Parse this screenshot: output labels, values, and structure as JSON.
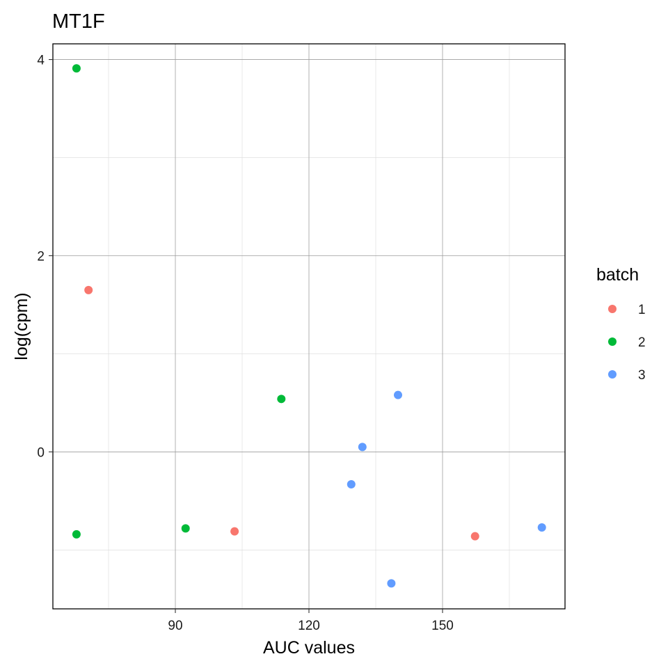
{
  "chart_data": {
    "type": "scatter",
    "title": "MT1F",
    "xlabel": "AUC values",
    "ylabel": "log(cpm)",
    "xlim": [
      62.5,
      177.5
    ],
    "ylim": [
      -1.6,
      4.16
    ],
    "x_major_ticks": [
      90,
      120,
      150
    ],
    "x_minor_ticks": [
      75,
      105,
      135,
      165
    ],
    "y_major_ticks": [
      0,
      2,
      4
    ],
    "y_minor_ticks": [
      -1,
      1,
      3
    ],
    "x_tick_labels": [
      "90",
      "120",
      "150"
    ],
    "y_tick_labels": [
      "0",
      "2",
      "4"
    ],
    "grid": true,
    "legend": {
      "title": "batch",
      "position": "right",
      "entries": [
        {
          "label": "1",
          "color": "#F8766D"
        },
        {
          "label": "2",
          "color": "#00BA38"
        },
        {
          "label": "3",
          "color": "#619CFF"
        }
      ]
    },
    "series": [
      {
        "name": "1",
        "color": "#F8766D",
        "points": [
          [
            70.5,
            1.65
          ],
          [
            103.3,
            -0.81
          ],
          [
            157.3,
            -0.86
          ]
        ]
      },
      {
        "name": "2",
        "color": "#00BA38",
        "points": [
          [
            67.8,
            3.91
          ],
          [
            67.8,
            -0.84
          ],
          [
            92.3,
            -0.78
          ],
          [
            113.8,
            0.54
          ]
        ]
      },
      {
        "name": "3",
        "color": "#619CFF",
        "points": [
          [
            129.5,
            -0.33
          ],
          [
            132.0,
            0.05
          ],
          [
            138.5,
            -1.34
          ],
          [
            140.0,
            0.58
          ],
          [
            172.3,
            -0.77
          ]
        ]
      }
    ]
  }
}
